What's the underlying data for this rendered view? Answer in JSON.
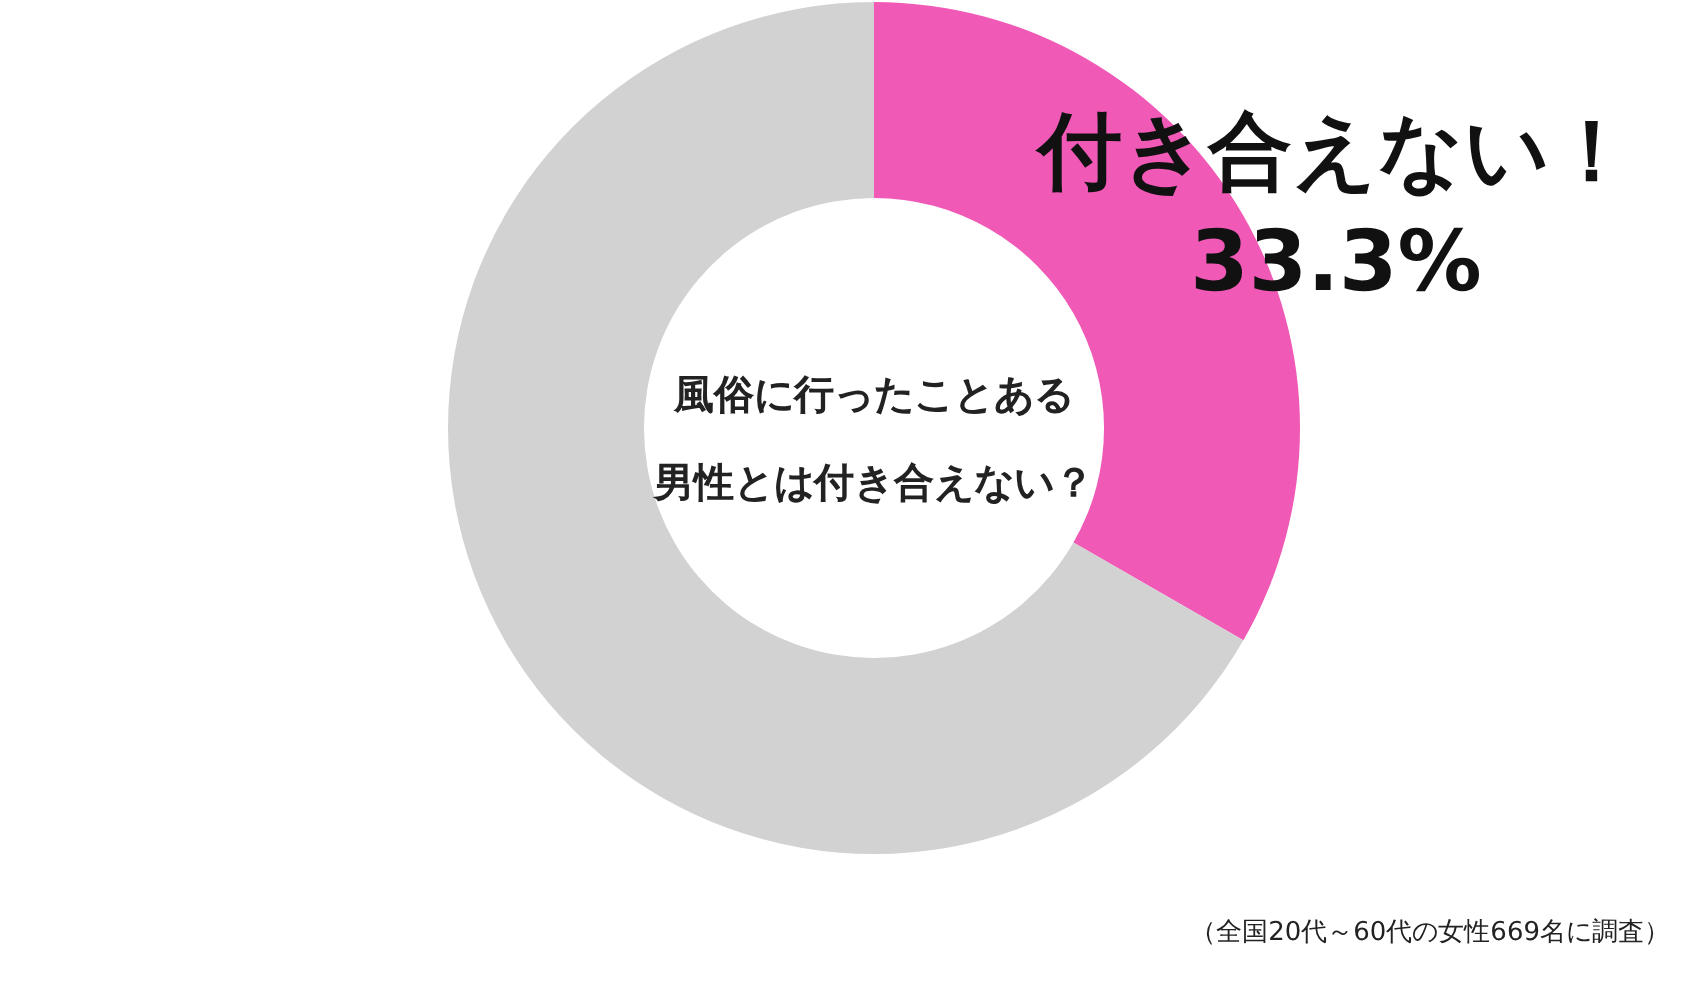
{
  "chart_data": {
    "type": "donut",
    "title": "風俗に行ったことある男性とは付き合えない？",
    "categories": [
      "付き合えない！",
      null
    ],
    "values": [
      33.3,
      66.7
    ],
    "colors": [
      "#f059b6",
      "#d2d2d2"
    ],
    "value_labels": [
      "33.3%",
      null
    ],
    "annotations": [
      "（全国20代～60代の女性669名に調査）"
    ]
  }
}
